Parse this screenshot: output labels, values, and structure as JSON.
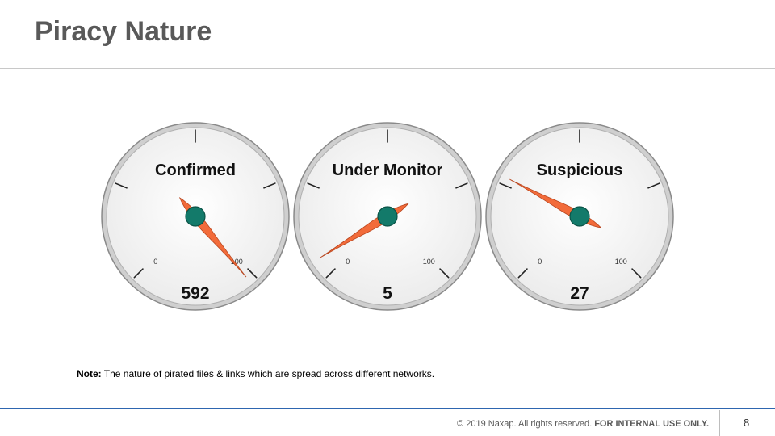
{
  "page": {
    "title": "Piracy Nature",
    "note_label": "Note:",
    "note_text": " The nature of pirated files & links which are spread across different networks.",
    "footer_text": "© 2019 Naxap. All rights reserved. ",
    "footer_bold": "FOR INTERNAL USE ONLY.",
    "page_number": "8"
  },
  "colors": {
    "needle": "#f26b3a",
    "hub": "#137a6a",
    "dial_face": "#f4f4f4",
    "dial_rim": "#8a8a8a"
  },
  "chart_data": [
    {
      "type": "gauge",
      "title": "Confirmed",
      "value": 592,
      "value_label": "592",
      "min": 0,
      "max": 100,
      "min_label": "0",
      "max_label": "100"
    },
    {
      "type": "gauge",
      "title": "Under Monitor",
      "value": 5,
      "value_label": "5",
      "min": 0,
      "max": 100,
      "min_label": "0",
      "max_label": "100"
    },
    {
      "type": "gauge",
      "title": "Suspicious",
      "value": 27,
      "value_label": "27",
      "min": 0,
      "max": 100,
      "min_label": "0",
      "max_label": "100"
    }
  ]
}
